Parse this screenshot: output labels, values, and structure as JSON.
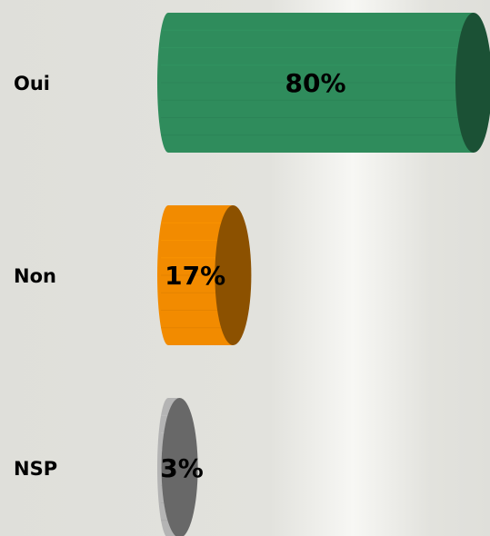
{
  "chart_data": {
    "type": "bar",
    "orientation": "horizontal",
    "categories": [
      "Oui",
      "Non",
      "NSP"
    ],
    "values": [
      80,
      17,
      3
    ],
    "value_labels": [
      "80%",
      "17%",
      "3%"
    ],
    "colors": [
      "#2f8c5c",
      "#f28b00",
      "#b4b4b4"
    ]
  }
}
